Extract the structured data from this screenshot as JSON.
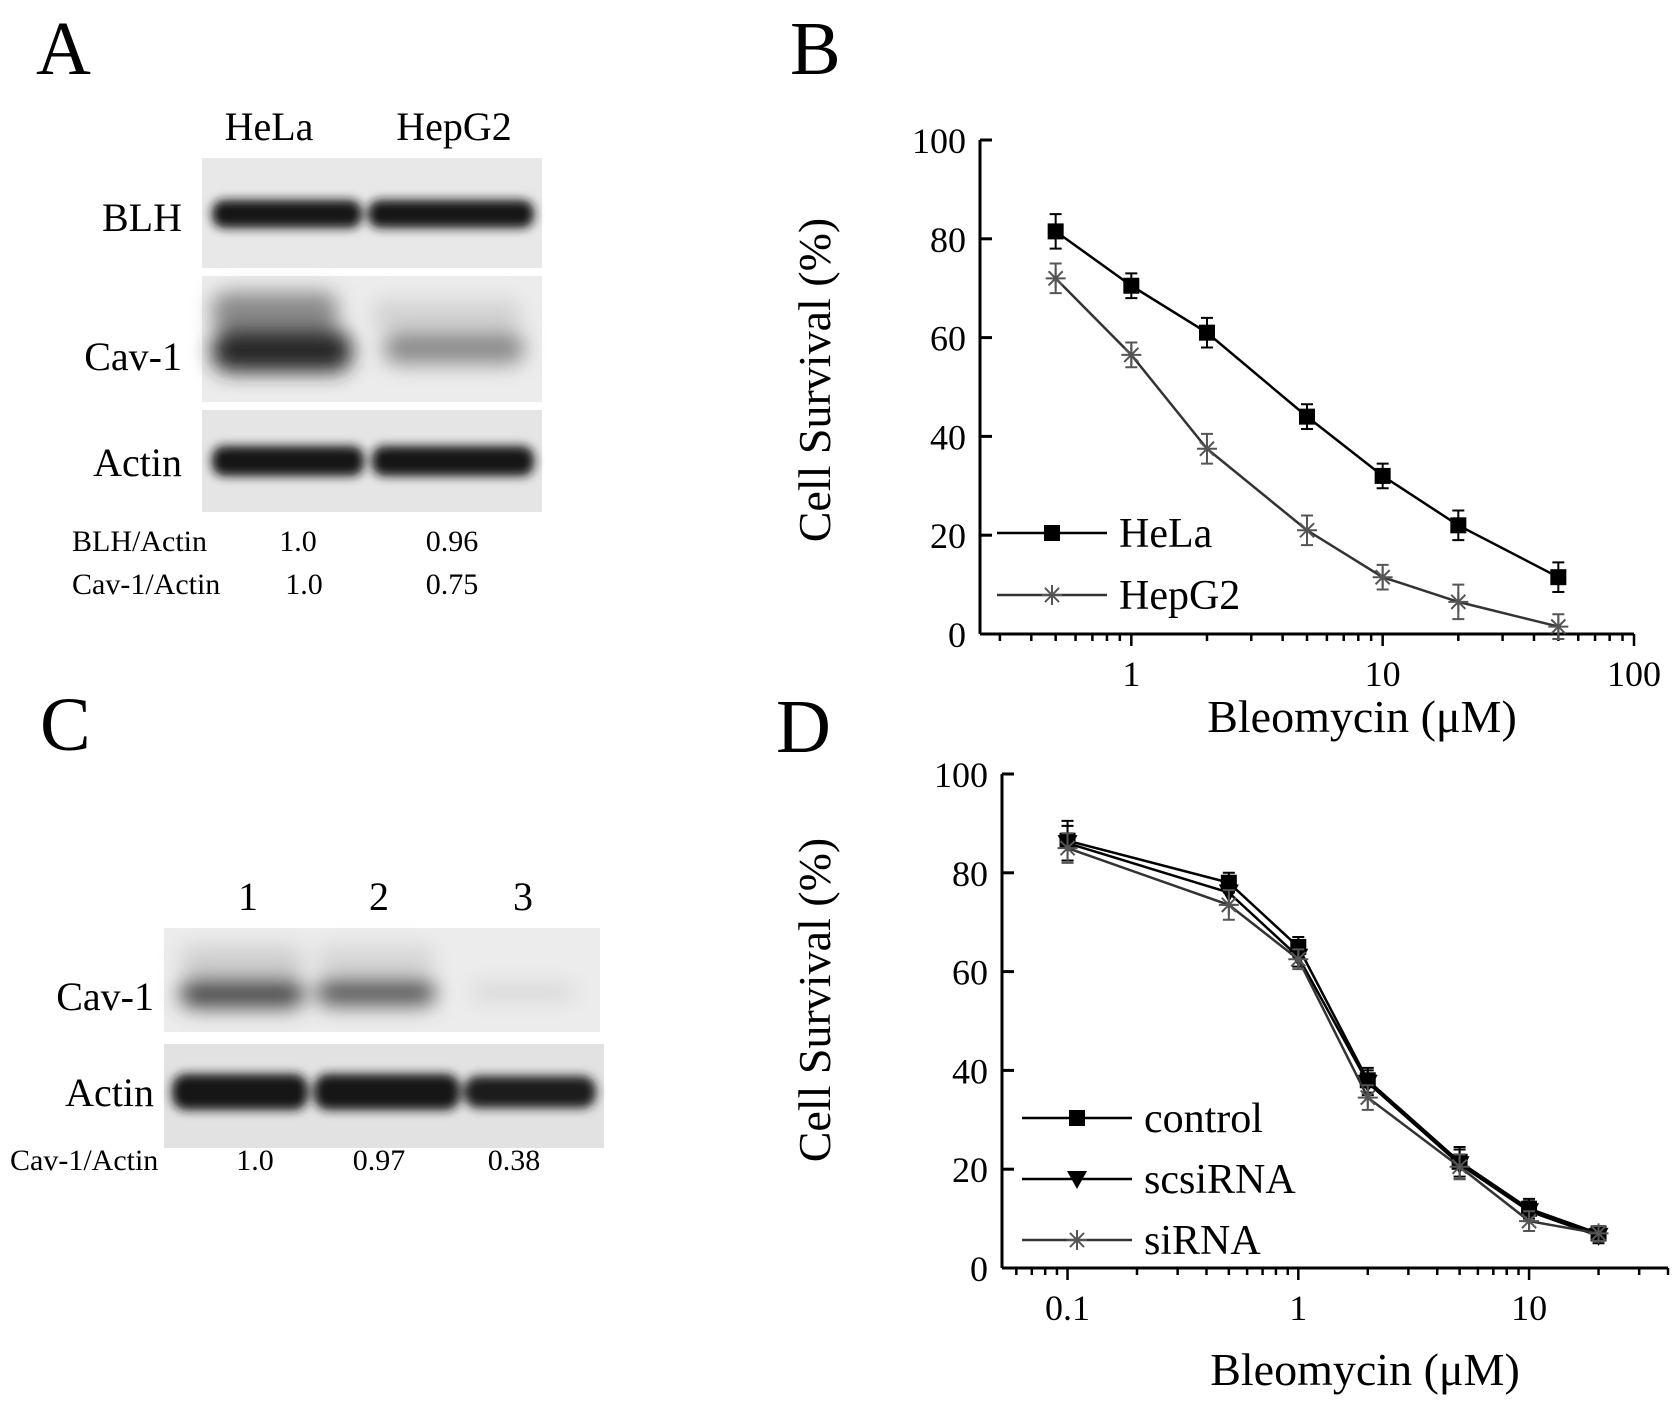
{
  "panels": {
    "A": {
      "letter": "A",
      "lanes": [
        "HeLa",
        "HepG2"
      ],
      "blot_rows": [
        "BLH",
        "Cav-1",
        "Actin"
      ],
      "quantification": [
        {
          "label": "BLH/Actin",
          "values": [
            "1.0",
            "0.96"
          ]
        },
        {
          "label": "Cav-1/Actin",
          "values": [
            "1.0",
            "0.75"
          ]
        }
      ]
    },
    "B": {
      "letter": "B"
    },
    "C": {
      "letter": "C",
      "lanes": [
        "1",
        "2",
        "3"
      ],
      "blot_rows": [
        "Cav-1",
        "Actin"
      ],
      "quantification": [
        {
          "label": "Cav-1/Actin",
          "values": [
            "1.0",
            "0.97",
            "0.38"
          ]
        }
      ]
    },
    "D": {
      "letter": "D"
    }
  },
  "chart_data": [
    {
      "panel": "B",
      "type": "line",
      "xlabel": "Bleomycin (μM)",
      "ylabel": "Cell Survival (%)",
      "xscale": "log",
      "xlim": [
        0.25,
        100
      ],
      "ylim": [
        0,
        100
      ],
      "xticks": [
        1,
        10,
        100
      ],
      "xtick_labels": [
        "1",
        "10",
        "100"
      ],
      "yticks": [
        0,
        20,
        40,
        60,
        80,
        100
      ],
      "ytick_labels": [
        "0",
        "20",
        "40",
        "60",
        "80",
        "100"
      ],
      "legend_position": "bottom-left",
      "grid": false,
      "series": [
        {
          "name": "HeLa",
          "marker": "square",
          "x": [
            0.5,
            1,
            2,
            5,
            10,
            20,
            50
          ],
          "y": [
            81.5,
            70.5,
            61,
            44,
            32,
            22,
            11.5
          ],
          "err": [
            3.5,
            2.5,
            3,
            2.5,
            2.5,
            3,
            3
          ]
        },
        {
          "name": "HepG2",
          "marker": "star",
          "x": [
            0.5,
            1,
            2,
            5,
            10,
            20,
            50
          ],
          "y": [
            72,
            56.5,
            37.5,
            21,
            11.5,
            6.5,
            1.5
          ],
          "err": [
            3,
            2.5,
            3,
            3,
            2.5,
            3.5,
            2.5
          ]
        }
      ]
    },
    {
      "panel": "D",
      "type": "line",
      "xlabel": "Bleomycin (μM)",
      "ylabel": "Cell Survival (%)",
      "xscale": "log",
      "xlim": [
        0.052,
        40
      ],
      "ylim": [
        0,
        100
      ],
      "xticks": [
        0.1,
        1,
        10
      ],
      "xtick_labels": [
        "0.1",
        "1",
        "10"
      ],
      "yticks": [
        0,
        20,
        40,
        60,
        80,
        100
      ],
      "ytick_labels": [
        "0",
        "20",
        "40",
        "60",
        "80",
        "100"
      ],
      "legend_position": "bottom-left",
      "grid": false,
      "series": [
        {
          "name": "control",
          "marker": "square",
          "x": [
            0.1,
            0.5,
            1,
            2,
            5,
            10,
            20
          ],
          "y": [
            86.5,
            78,
            65,
            38,
            21.5,
            12,
            7
          ],
          "err": [
            4,
            2,
            2,
            2.5,
            3,
            2,
            1.5
          ]
        },
        {
          "name": "scsiRNA",
          "marker": "triangle-down",
          "x": [
            0.1,
            0.5,
            1,
            2,
            5,
            10,
            20
          ],
          "y": [
            86,
            76,
            63,
            37.5,
            21,
            11.5,
            6.5
          ],
          "err": [
            3.5,
            2.5,
            2,
            2.5,
            3,
            2,
            1.5
          ]
        },
        {
          "name": "siRNA",
          "marker": "star",
          "x": [
            0.1,
            0.5,
            1,
            2,
            5,
            10,
            20
          ],
          "y": [
            85,
            73.5,
            62.5,
            34.5,
            20.5,
            9.5,
            7
          ],
          "err": [
            3,
            3,
            2,
            2.5,
            2.5,
            2,
            1.5
          ]
        }
      ]
    }
  ]
}
